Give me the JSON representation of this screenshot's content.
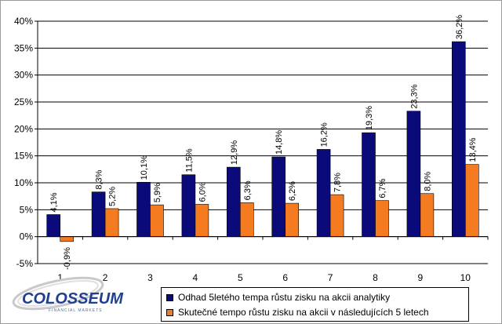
{
  "chart_data": {
    "type": "bar",
    "title": "",
    "xlabel": "",
    "ylabel": "",
    "categories": [
      "1",
      "2",
      "3",
      "4",
      "5",
      "6",
      "7",
      "8",
      "9",
      "10"
    ],
    "ylim": [
      -5,
      40
    ],
    "yticks": [
      -5,
      0,
      5,
      10,
      15,
      20,
      25,
      30,
      35,
      40
    ],
    "ytick_labels": [
      "-5%",
      "0%",
      "5%",
      "10%",
      "15%",
      "20%",
      "25%",
      "30%",
      "35%",
      "40%"
    ],
    "grid": true,
    "legend_position": "bottom-right",
    "series": [
      {
        "name": "Odhad 5letého tempa růstu zisku na akcii analytiky",
        "color": "#0a0a7a",
        "values": [
          4.1,
          8.3,
          10.1,
          11.5,
          12.9,
          14.8,
          16.2,
          19.3,
          23.3,
          36.2
        ],
        "labels": [
          "4,1%",
          "8,3%",
          "10,1%",
          "11,5%",
          "12,9%",
          "14,8%",
          "16,2%",
          "19,3%",
          "23,3%",
          "36,2%"
        ]
      },
      {
        "name": "Skutečné tempo růstu zisku na akcii v následujících 5 letech",
        "color": "#f47b20",
        "values": [
          -0.9,
          5.2,
          5.9,
          6.0,
          6.3,
          6.2,
          7.8,
          6.7,
          8.0,
          13.4
        ],
        "labels": [
          "-0,9%",
          "5,2%",
          "5,9%",
          "6,0%",
          "6,3%",
          "6,2%",
          "7,8%",
          "6,7%",
          "8,0%",
          "13,4%"
        ]
      }
    ]
  },
  "logo": {
    "name": "COLOSSEUM",
    "tagline": "FINANCIAL MARKETS"
  }
}
